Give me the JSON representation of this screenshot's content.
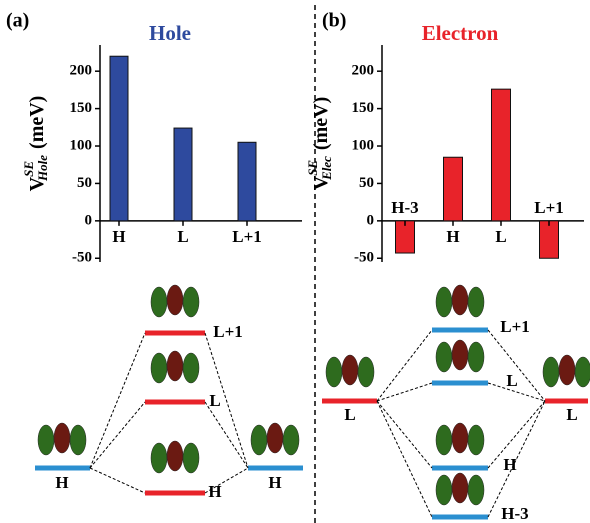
{
  "chart_data": [
    {
      "type": "bar",
      "panel": "(a)",
      "title": "Hole",
      "title_color": "#2e4a9e",
      "y_label": {
        "main": "V",
        "sup": "SE",
        "sub": "Hole",
        "unit": "(meV)"
      },
      "categories": [
        "H",
        "L",
        "L+1"
      ],
      "values": [
        220,
        124,
        105
      ],
      "color": "#2e4a9e",
      "ylim": [
        -55,
        235
      ],
      "yticks": [
        -50,
        0,
        50,
        100,
        150,
        200
      ]
    },
    {
      "type": "bar",
      "panel": "(b)",
      "title": "Electron",
      "title_color": "#e8232a",
      "y_label": {
        "main": "V",
        "sup": "SE",
        "sub": "Elec",
        "unit": "(meV)"
      },
      "categories": [
        "H-3",
        "H",
        "L",
        "L+1"
      ],
      "values": [
        -43,
        85,
        176,
        -50
      ],
      "color": "#e8232a",
      "ylim": [
        -55,
        235
      ],
      "yticks": [
        -50,
        0,
        50,
        100,
        150,
        200
      ]
    }
  ],
  "diagram": {
    "a": [
      "L+1",
      "L",
      "H",
      "H",
      "H"
    ],
    "b": [
      "L",
      "L",
      "L+1",
      "L",
      "H",
      "H-3"
    ]
  }
}
